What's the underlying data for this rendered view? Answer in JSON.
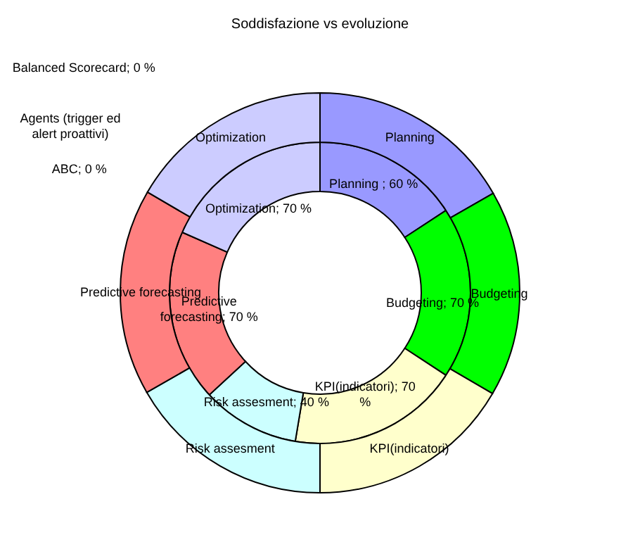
{
  "chart_data": {
    "type": "donut",
    "title": "Soddisfazione vs evoluzione",
    "categories": [
      "Planning",
      "Budgeting",
      "KPI(indicatori)",
      "Risk assesment",
      "Predictive forecasting",
      "Optimization",
      "Balanced Scorecard",
      "Agents (trigger ed alert proattivi)",
      "ABC"
    ],
    "colors": [
      "#9999ff",
      "#00ff00",
      "#ffffcc",
      "#ccffff",
      "#ff8080",
      "#ccccff",
      "#993366",
      "#ffff99",
      "#660066"
    ],
    "series": [
      {
        "values": [
          60,
          70,
          70,
          40,
          70,
          70,
          0,
          0,
          0
        ],
        "value_labels": [
          "Planning ; 60 %",
          "Budgeting; 70 %",
          "KPI(indicatori); 70 %",
          "Risk assesment; 40 %",
          "Predictive forecasting; 70 %",
          "Optimization; 70 %",
          "; 0 %",
          null,
          "; 0 %"
        ]
      },
      {
        "values": [
          16.7,
          16.7,
          16.6,
          16.7,
          16.7,
          16.6,
          0,
          0,
          0
        ]
      }
    ]
  }
}
